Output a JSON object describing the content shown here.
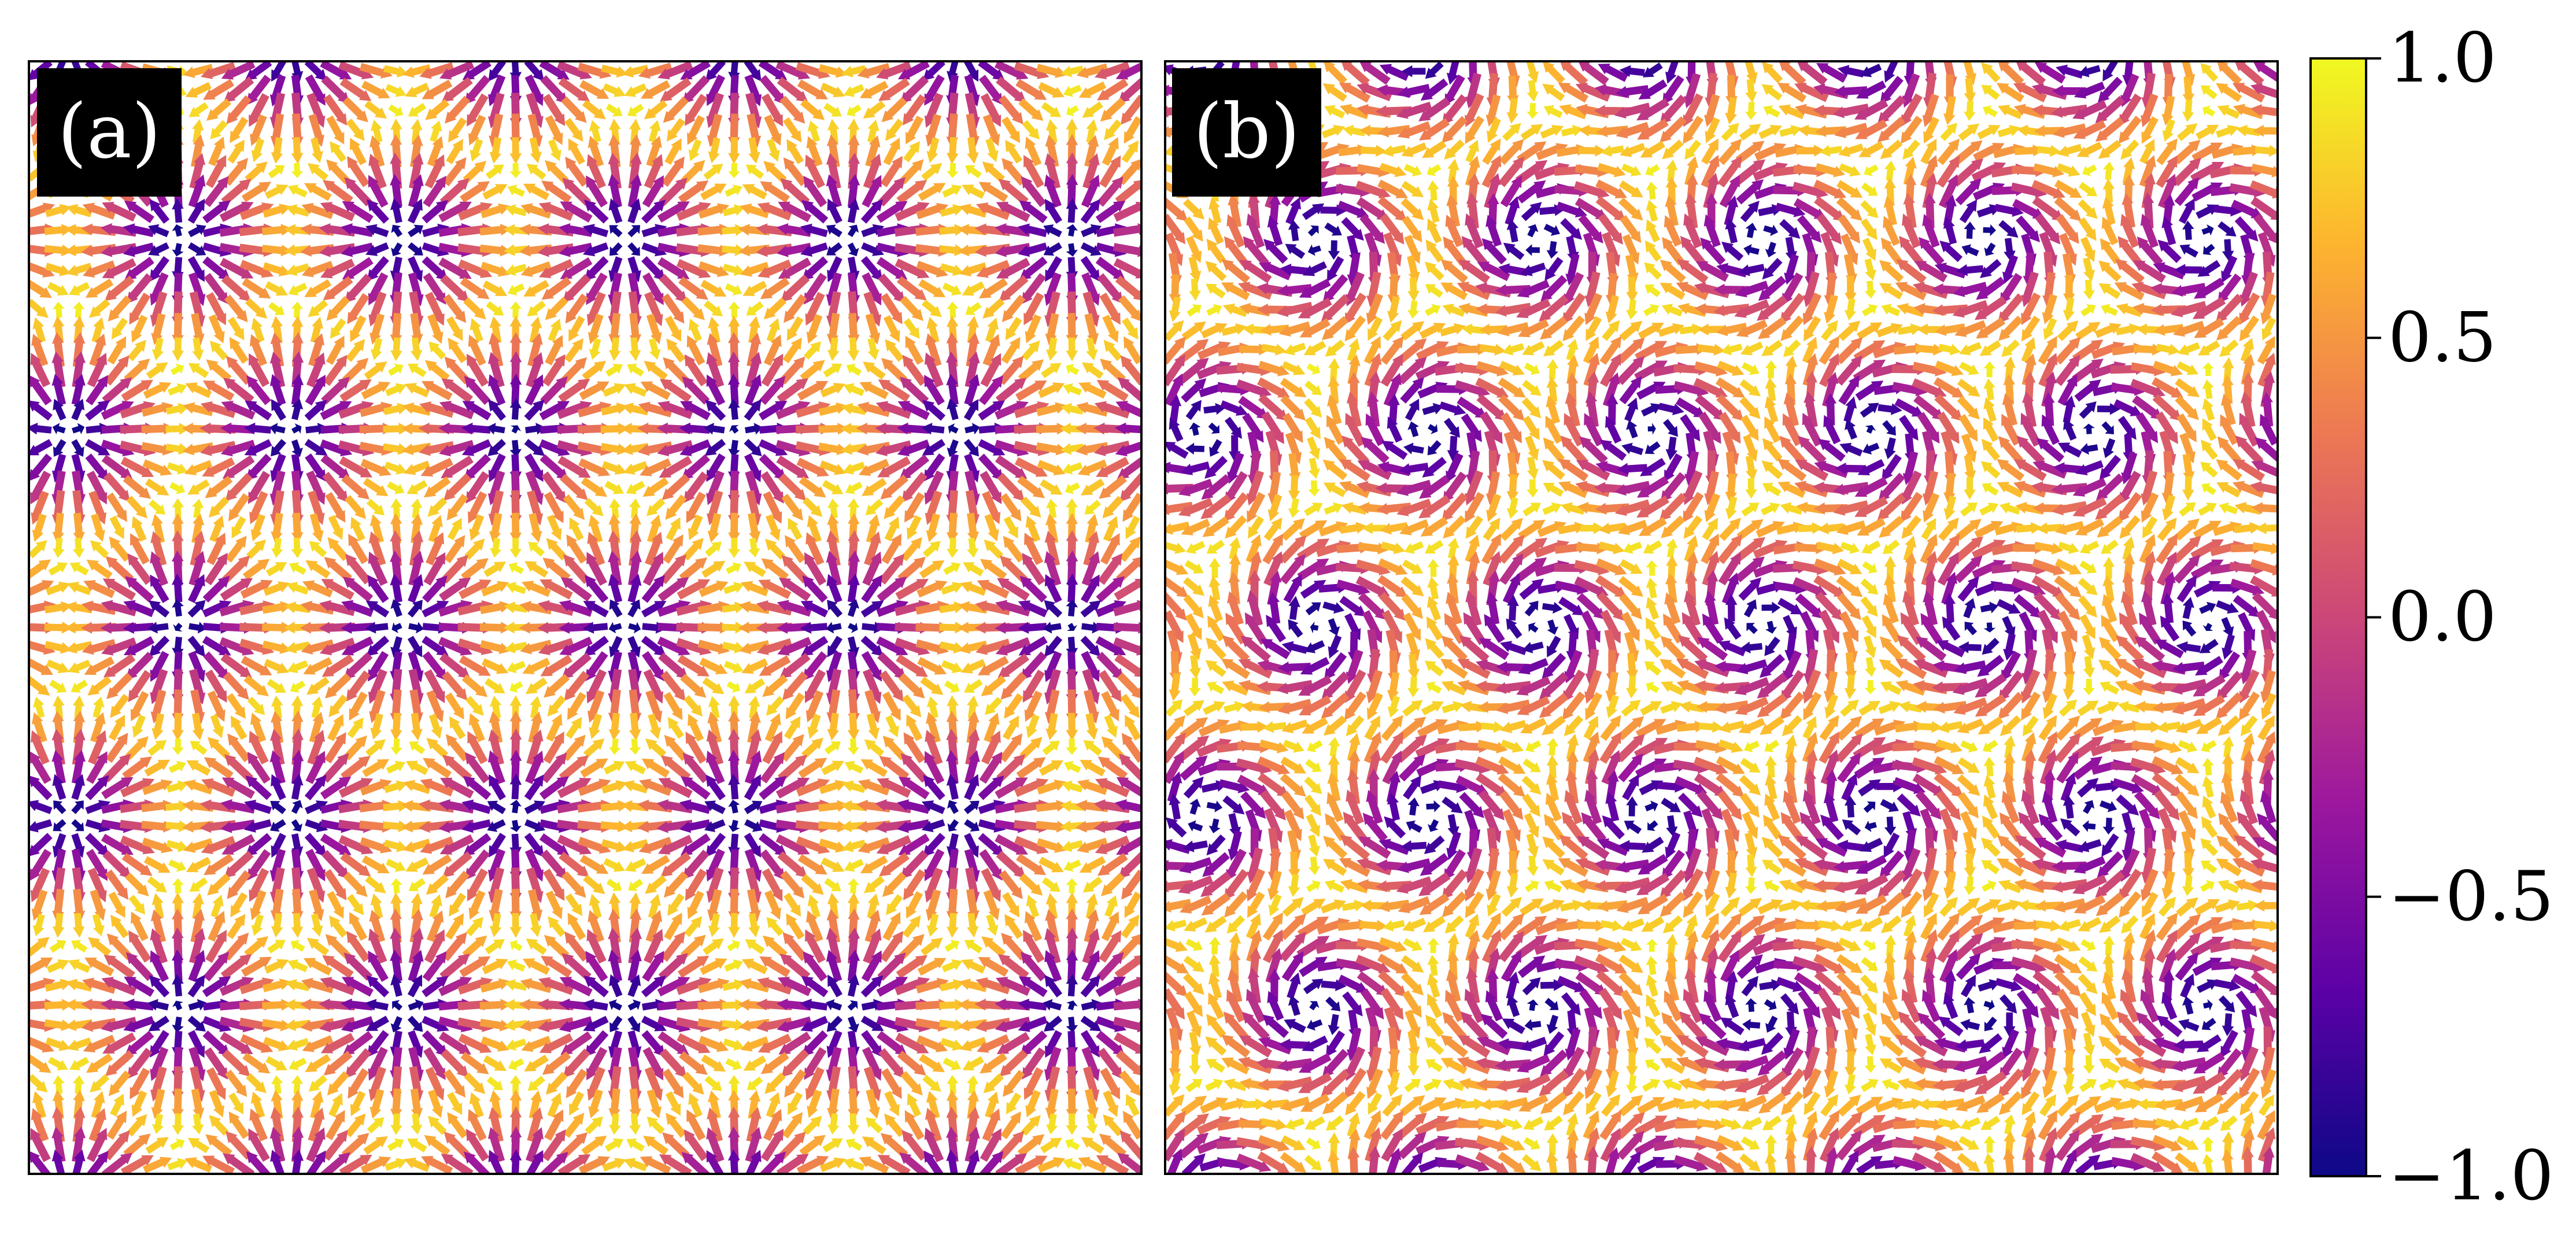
{
  "chart_data": [
    {
      "type": "quiver",
      "panel_label": "(a)",
      "texture": "hedgehog",
      "helicity_deg": 0,
      "grid": false,
      "axis_ticks": false,
      "lattice_cells": 5,
      "colormap": "plasma",
      "color_variable": "m_z"
    },
    {
      "type": "quiver",
      "panel_label": "(b)",
      "texture": "vortex",
      "helicity_deg": 60,
      "grid": false,
      "axis_ticks": false,
      "lattice_cells": 5,
      "colormap": "plasma",
      "color_variable": "m_z"
    }
  ],
  "colorbar": {
    "min": -1.0,
    "max": 1.0,
    "ticks": [
      1.0,
      0.5,
      0.0,
      -0.5,
      -1.0
    ],
    "tick_labels": [
      "1.0",
      "0.5",
      "0.0",
      "−0.5",
      "−1.0"
    ],
    "colors": [
      "#0d0887",
      "#5c01a6",
      "#9c179e",
      "#cc4778",
      "#ed7953",
      "#fdb42f",
      "#f0f921"
    ]
  }
}
